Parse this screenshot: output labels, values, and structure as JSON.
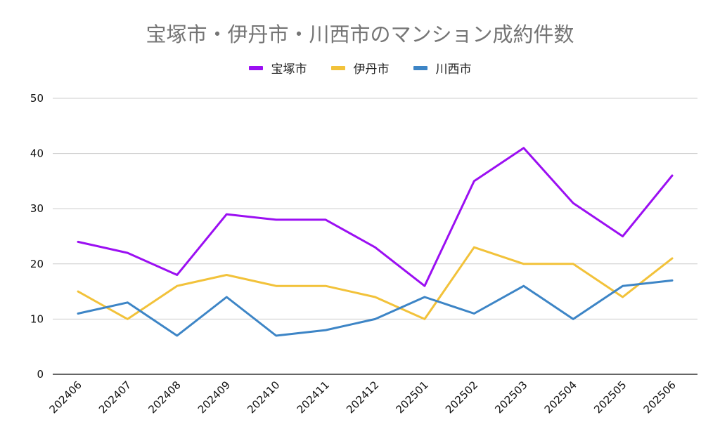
{
  "chart_data": {
    "type": "line",
    "title": "宝塚市・伊丹市・川西市のマンション成約件数",
    "xlabel": "",
    "ylabel": "",
    "categories": [
      "202406",
      "202407",
      "202408",
      "202409",
      "202410",
      "202411",
      "202412",
      "202501",
      "202502",
      "202503",
      "202504",
      "202505",
      "202506"
    ],
    "ylim": [
      0,
      50
    ],
    "yticks": [
      0,
      10,
      20,
      30,
      40,
      50
    ],
    "grid": true,
    "legend_position": "top-center",
    "series": [
      {
        "name": "宝塚市",
        "color": "#9b0ff2",
        "values": [
          24,
          22,
          18,
          29,
          28,
          28,
          23,
          16,
          35,
          41,
          31,
          25,
          36
        ]
      },
      {
        "name": "伊丹市",
        "color": "#f2c23a",
        "values": [
          15,
          10,
          16,
          18,
          16,
          16,
          14,
          10,
          23,
          20,
          20,
          14,
          21
        ]
      },
      {
        "name": "川西市",
        "color": "#3d85c6",
        "values": [
          11,
          13,
          7,
          14,
          7,
          8,
          10,
          14,
          11,
          16,
          10,
          16,
          17
        ]
      }
    ]
  }
}
